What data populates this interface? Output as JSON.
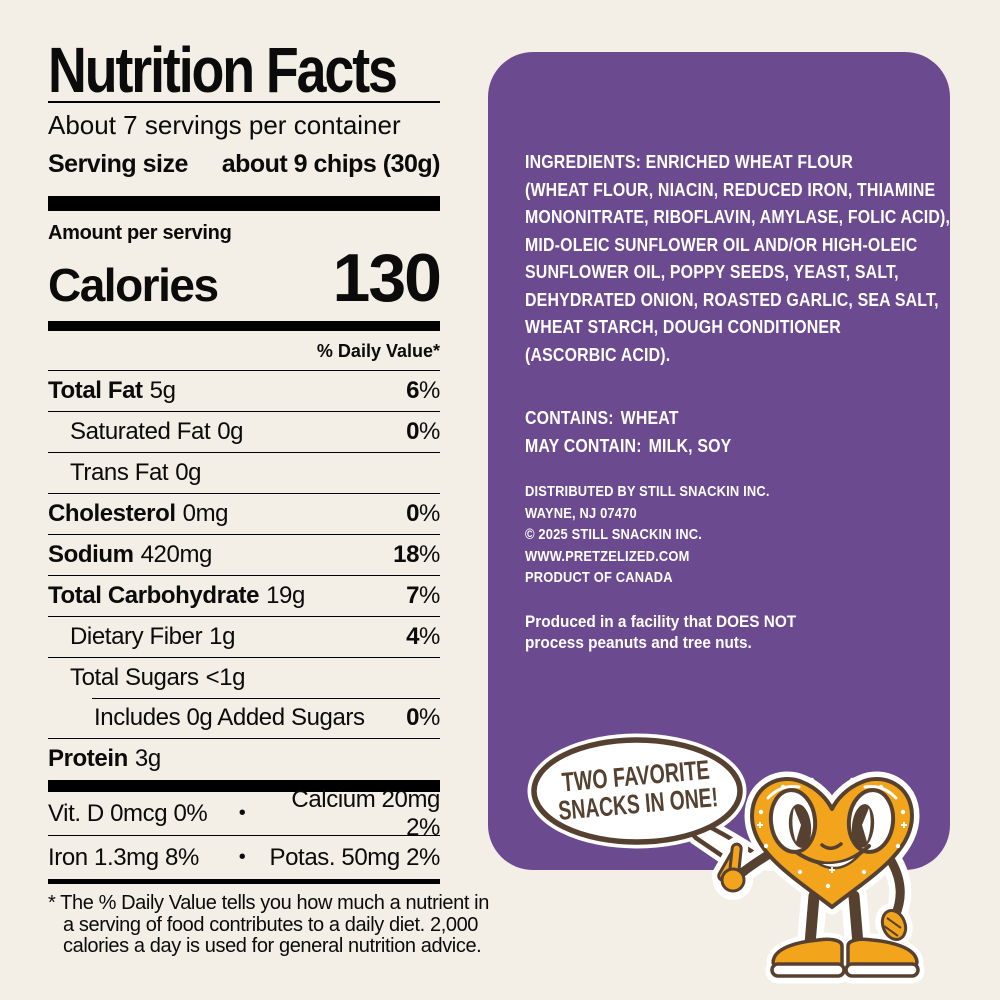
{
  "palette": {
    "cream": "#F3EEE6",
    "purple": "#6B4A90",
    "orange": "#F2A51C",
    "brown": "#564130",
    "black": "#000000",
    "white": "#FFFFFF"
  },
  "nutrition": {
    "title": "Nutrition Facts",
    "servings_per_container": "About 7 servings per container",
    "serving_size_label": "Serving size",
    "serving_size_value": "about 9 chips (30g)",
    "amount_per_serving": "Amount per serving",
    "calories_label": "Calories",
    "calories_value": "130",
    "daily_value_header": "% Daily Value*",
    "rows": [
      {
        "name": "Total Fat",
        "amount": "5g",
        "dv": "6%",
        "bold": true,
        "indent": 0
      },
      {
        "name": "Saturated Fat",
        "amount": "0g",
        "dv": "0%",
        "bold": false,
        "indent": 1
      },
      {
        "name": "Trans Fat",
        "amount": "0g",
        "dv": "",
        "bold": false,
        "indent": 1
      },
      {
        "name": "Cholesterol",
        "amount": "0mg",
        "dv": "0%",
        "bold": true,
        "indent": 0
      },
      {
        "name": "Sodium",
        "amount": "420mg",
        "dv": "18%",
        "bold": true,
        "indent": 0
      },
      {
        "name": "Total Carbohydrate",
        "amount": "19g",
        "dv": "7%",
        "bold": true,
        "indent": 0
      },
      {
        "name": "Dietary Fiber",
        "amount": "1g",
        "dv": "4%",
        "bold": false,
        "indent": 1
      },
      {
        "name": "Total Sugars",
        "amount": "<1g",
        "dv": "",
        "bold": false,
        "indent": 1
      },
      {
        "name": "Includes 0g Added Sugars",
        "amount": "",
        "dv": "0%",
        "bold": false,
        "indent": 2
      },
      {
        "name": "Protein",
        "amount": "3g",
        "dv": "",
        "bold": true,
        "indent": 0
      }
    ],
    "micro_bullet": "•",
    "micros": [
      {
        "left": "Vit. D 0mcg 0%",
        "right": "Calcium 20mg 2%"
      },
      {
        "left": "Iron 1.3mg 8%",
        "right": "Potas. 50mg 2%"
      }
    ],
    "footnote_lines": [
      "* The % Daily Value tells you how much a nutrient in",
      "a serving of food contributes to a daily diet. 2,000",
      "calories a day is used for general nutrition advice."
    ]
  },
  "panel": {
    "ingredients_lines": [
      "INGREDIENTS: ENRICHED WHEAT FLOUR",
      "(WHEAT FLOUR, NIACIN, REDUCED IRON, THIAMINE",
      "MONONITRATE, RIBOFLAVIN, AMYLASE, FOLIC ACID),",
      "MID-OLEIC SUNFLOWER OIL AND/OR HIGH-OLEIC",
      "SUNFLOWER OIL, POPPY SEEDS, YEAST, SALT,",
      "DEHYDRATED ONION, ROASTED GARLIC, SEA SALT,",
      "WHEAT STARCH, DOUGH CONDITIONER",
      "(ASCORBIC ACID)."
    ],
    "contains_label": "CONTAINS:",
    "contains_value": "WHEAT",
    "may_contain_label": "MAY CONTAIN:",
    "may_contain_value": "MILK, SOY",
    "distribution_lines": [
      "DISTRIBUTED BY STILL SNACKIN INC.",
      "WAYNE, NJ 07470",
      "© 2025 STILL SNACKIN INC.",
      "WWW.PRETZELIZED.COM",
      "PRODUCT OF CANADA"
    ],
    "facility_note": "Produced in a facility that DOES NOT\nprocess peanuts and tree nuts."
  },
  "mascot": {
    "speech_line1": "TWO FAVORITE",
    "speech_line2": "SNACKS IN ONE!"
  }
}
